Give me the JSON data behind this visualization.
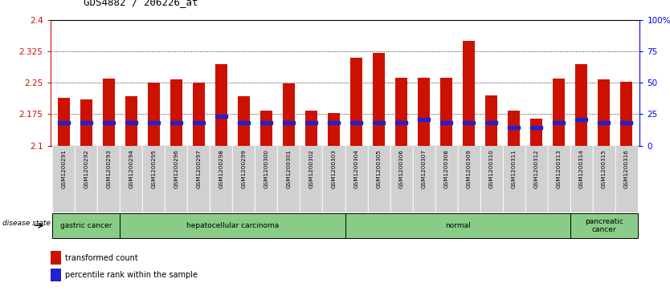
{
  "title": "GDS4882 / 206226_at",
  "samples": [
    "GSM1200291",
    "GSM1200292",
    "GSM1200293",
    "GSM1200294",
    "GSM1200295",
    "GSM1200296",
    "GSM1200297",
    "GSM1200298",
    "GSM1200299",
    "GSM1200300",
    "GSM1200301",
    "GSM1200302",
    "GSM1200303",
    "GSM1200304",
    "GSM1200305",
    "GSM1200306",
    "GSM1200307",
    "GSM1200308",
    "GSM1200309",
    "GSM1200310",
    "GSM1200311",
    "GSM1200312",
    "GSM1200313",
    "GSM1200314",
    "GSM1200315",
    "GSM1200316"
  ],
  "transformed_count": [
    2.215,
    2.21,
    2.26,
    2.218,
    2.25,
    2.258,
    2.25,
    2.295,
    2.218,
    2.183,
    2.248,
    2.183,
    2.178,
    2.31,
    2.322,
    2.262,
    2.262,
    2.262,
    2.35,
    2.22,
    2.183,
    2.165,
    2.26,
    2.295,
    2.258,
    2.253
  ],
  "percentile_rank_y": [
    2.155,
    2.155,
    2.155,
    2.155,
    2.155,
    2.155,
    2.155,
    2.17,
    2.155,
    2.155,
    2.155,
    2.155,
    2.155,
    2.155,
    2.155,
    2.155,
    2.163,
    2.155,
    2.155,
    2.155,
    2.143,
    2.143,
    2.155,
    2.163,
    2.155,
    2.155
  ],
  "ylim_left": [
    2.1,
    2.4
  ],
  "ylim_right": [
    0,
    100
  ],
  "yticks_left": [
    2.1,
    2.175,
    2.25,
    2.325,
    2.4
  ],
  "ytick_labels_left": [
    "2.1",
    "2.175",
    "2.25",
    "2.325",
    "2.4"
  ],
  "yticks_right": [
    0,
    25,
    50,
    75,
    100
  ],
  "ytick_labels_right": [
    "0",
    "25",
    "50",
    "75",
    "100%"
  ],
  "bar_color": "#CC1100",
  "percentile_color": "#2222CC",
  "bg_color": "#FFFFFF",
  "plot_bg": "#FFFFFF",
  "groups": [
    {
      "label": "gastric cancer",
      "start": 0,
      "end": 3
    },
    {
      "label": "hepatocellular carcinoma",
      "start": 3,
      "end": 13
    },
    {
      "label": "normal",
      "start": 13,
      "end": 23
    },
    {
      "label": "pancreatic\ncancer",
      "start": 23,
      "end": 26
    }
  ],
  "group_color": "#88CC88",
  "legend_labels": [
    "transformed count",
    "percentile rank within the sample"
  ],
  "legend_colors": [
    "#CC1100",
    "#2222CC"
  ],
  "disease_state_label": "disease state"
}
